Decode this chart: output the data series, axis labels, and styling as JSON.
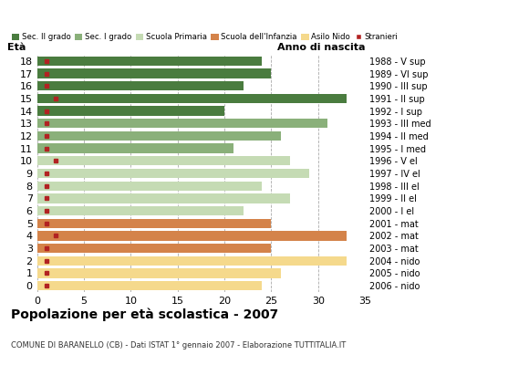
{
  "ages": [
    18,
    17,
    16,
    15,
    14,
    13,
    12,
    11,
    10,
    9,
    8,
    7,
    6,
    5,
    4,
    3,
    2,
    1,
    0
  ],
  "years": [
    "1988 - V sup",
    "1989 - VI sup",
    "1990 - III sup",
    "1991 - II sup",
    "1992 - I sup",
    "1993 - III med",
    "1994 - II med",
    "1995 - I med",
    "1996 - V el",
    "1997 - IV el",
    "1998 - III el",
    "1999 - II el",
    "2000 - I el",
    "2001 - mat",
    "2002 - mat",
    "2003 - mat",
    "2004 - nido",
    "2005 - nido",
    "2006 - nido"
  ],
  "values": [
    24,
    25,
    22,
    33,
    20,
    31,
    26,
    21,
    27,
    29,
    24,
    27,
    22,
    25,
    33,
    25,
    33,
    26,
    24
  ],
  "stranieri": [
    1,
    1,
    1,
    2,
    1,
    1,
    1,
    1,
    2,
    1,
    1,
    1,
    1,
    1,
    2,
    1,
    1,
    1,
    1
  ],
  "bar_colors": {
    "sec2": "#4a7c3f",
    "sec1": "#8ab07a",
    "primaria": "#c5dbb4",
    "infanzia": "#d4834a",
    "nido": "#f5d98c",
    "stranieri": "#b22222"
  },
  "category_ranges": {
    "sec2": [
      14,
      18
    ],
    "sec1": [
      11,
      13
    ],
    "primaria": [
      6,
      10
    ],
    "infanzia": [
      3,
      5
    ],
    "nido": [
      0,
      2
    ]
  },
  "legend_labels": [
    "Sec. II grado",
    "Sec. I grado",
    "Scuola Primaria",
    "Scuola dell'Infanzia",
    "Asilo Nido",
    "Stranieri"
  ],
  "title": "Popolazione per età scolastica - 2007",
  "subtitle": "COMUNE DI BARANELLO (CB) - Dati ISTAT 1° gennaio 2007 - Elaborazione TUTTITALIA.IT",
  "xlabel_eta": "Età",
  "xlabel_anno": "Anno di nascita",
  "xlim": [
    0,
    35
  ],
  "xticks": [
    0,
    5,
    10,
    15,
    20,
    25,
    30,
    35
  ],
  "bar_height": 0.75,
  "figsize": [
    5.8,
    4.0
  ],
  "dpi": 100
}
